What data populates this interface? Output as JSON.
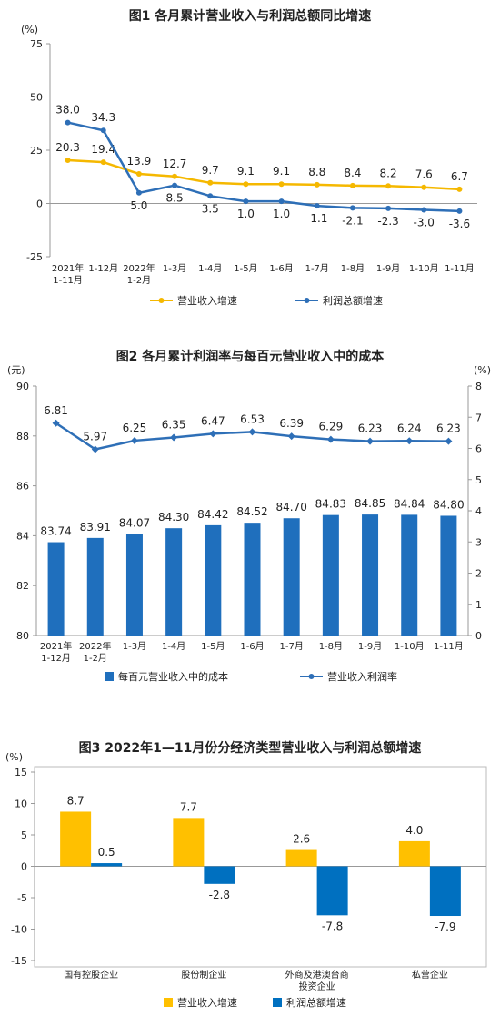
{
  "chart_data": [
    {
      "type": "line",
      "title": "图1 各月累计营业收入与利润总额同比增速",
      "ylabel": "(%)",
      "categories": [
        "2021年\n1-11月",
        "1-12月",
        "2022年\n1-2月",
        "1-3月",
        "1-4月",
        "1-5月",
        "1-6月",
        "1-7月",
        "1-8月",
        "1-9月",
        "1-10月",
        "1-11月"
      ],
      "series": [
        {
          "name": "营业收入增速",
          "color": "#f5b800",
          "values": [
            20.3,
            19.4,
            13.9,
            12.7,
            9.7,
            9.1,
            9.1,
            8.8,
            8.4,
            8.2,
            7.6,
            6.7
          ],
          "value_labels": [
            "20.3",
            "19.4",
            "13.9",
            "12.7",
            "9.7",
            "9.1",
            "9.1",
            "8.8",
            "8.4",
            "8.2",
            "7.6",
            "6.7"
          ]
        },
        {
          "name": "利润总额增速",
          "color": "#2e6fb7",
          "values": [
            38.0,
            34.3,
            5.0,
            8.5,
            3.5,
            1.0,
            1.0,
            -1.1,
            -2.1,
            -2.3,
            -3.0,
            -3.6
          ],
          "value_labels": [
            "38.0",
            "34.3",
            "5.0",
            "8.5",
            "3.5",
            "1.0",
            "1.0",
            "-1.1",
            "-2.1",
            "-2.3",
            "-3.0",
            "-3.6"
          ]
        }
      ],
      "ylim": [
        -25,
        75
      ],
      "yticks": [
        -25,
        0,
        25,
        50,
        75
      ],
      "grid": false
    },
    {
      "type": "combo",
      "title": "图2 各月累计利润率与每百元营业收入中的成本",
      "ylabel": "(元)",
      "y2label": "(%)",
      "categories": [
        "2021年\n1-12月",
        "2022年\n1-2月",
        "1-3月",
        "1-4月",
        "1-5月",
        "1-6月",
        "1-7月",
        "1-8月",
        "1-9月",
        "1-10月",
        "1-11月"
      ],
      "series": [
        {
          "name": "每百元营业收入中的成本",
          "type": "bar",
          "color": "#1f6fbd",
          "values": [
            83.74,
            83.91,
            84.07,
            84.3,
            84.42,
            84.52,
            84.7,
            84.83,
            84.85,
            84.84,
            84.8
          ],
          "value_labels": [
            "83.74",
            "83.91",
            "84.07",
            "84.30",
            "84.42",
            "84.52",
            "84.70",
            "84.83",
            "84.85",
            "84.84",
            "84.80"
          ]
        },
        {
          "name": "营业收入利润率",
          "type": "line",
          "axis": "y2",
          "color": "#2e6fb7",
          "values": [
            6.81,
            5.97,
            6.25,
            6.35,
            6.47,
            6.53,
            6.39,
            6.29,
            6.23,
            6.24,
            6.23
          ],
          "value_labels": [
            "6.81",
            "5.97",
            "6.25",
            "6.35",
            "6.47",
            "6.53",
            "6.39",
            "6.29",
            "6.23",
            "6.24",
            "6.23"
          ]
        }
      ],
      "ylim": [
        80,
        90
      ],
      "yticks": [
        80,
        82,
        84,
        86,
        88,
        90
      ],
      "y2lim": [
        0,
        8
      ],
      "y2ticks": [
        0,
        1,
        2,
        3,
        4,
        5,
        6,
        7,
        8
      ],
      "grid": false
    },
    {
      "type": "bar",
      "title": "图3 2022年1—11月份分经济类型营业收入与利润总额增速",
      "ylabel": "(%)",
      "categories": [
        "国有控股企业",
        "股份制企业",
        "外商及港澳台商\n投资企业",
        "私营企业"
      ],
      "series": [
        {
          "name": "营业收入增速",
          "color": "#ffc000",
          "values": [
            8.7,
            7.7,
            2.6,
            4.0
          ],
          "value_labels": [
            "8.7",
            "7.7",
            "2.6",
            "4.0"
          ]
        },
        {
          "name": "利润总额增速",
          "color": "#0070c0",
          "values": [
            0.5,
            -2.8,
            -7.8,
            -7.9
          ],
          "value_labels": [
            "0.5",
            "-2.8",
            "-7.8",
            "-7.9"
          ]
        }
      ],
      "ylim": [
        -15,
        15
      ],
      "yticks": [
        -15,
        -10,
        -5,
        0,
        5,
        10,
        15
      ],
      "grid": false
    }
  ]
}
